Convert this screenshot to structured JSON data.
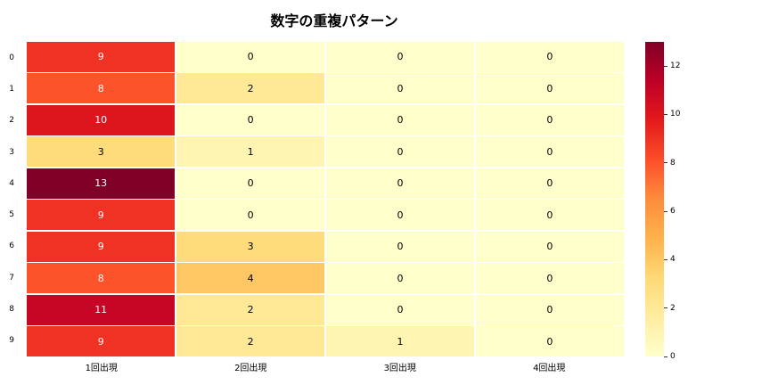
{
  "chart_data": {
    "type": "heatmap",
    "title": "数字の重複パターン",
    "rows": [
      "0",
      "1",
      "2",
      "3",
      "4",
      "5",
      "6",
      "7",
      "8",
      "9"
    ],
    "columns": [
      "1回出現",
      "2回出現",
      "3回出現",
      "4回出現"
    ],
    "values": [
      [
        9,
        0,
        0,
        0
      ],
      [
        8,
        2,
        0,
        0
      ],
      [
        10,
        0,
        0,
        0
      ],
      [
        3,
        1,
        0,
        0
      ],
      [
        13,
        0,
        0,
        0
      ],
      [
        9,
        0,
        0,
        0
      ],
      [
        9,
        3,
        0,
        0
      ],
      [
        8,
        4,
        0,
        0
      ],
      [
        11,
        2,
        0,
        0
      ],
      [
        9,
        2,
        1,
        0
      ]
    ],
    "vmin": 0,
    "vmax": 13,
    "colormap": "YlOrRd",
    "colorbar_ticks": [
      0,
      2,
      4,
      6,
      8,
      10,
      12
    ],
    "colorbar_gradient": [
      "#ffffcc",
      "#ffeda0",
      "#fed976",
      "#feb24c",
      "#fd8d3c",
      "#fc4e2a",
      "#e31a1c",
      "#bd0026",
      "#800026"
    ],
    "palette": {
      "0": "#ffffcc",
      "1": "#fff4b1",
      "2": "#ffe896",
      "3": "#fedc7c",
      "4": "#fec763",
      "8": "#fc532b",
      "9": "#ef3223",
      "10": "#dd161e",
      "11": "#c60624",
      "13": "#800026"
    },
    "text_white_threshold": 8,
    "annotation_color_dark": "#000000",
    "annotation_color_light": "#ffffff",
    "legend_position": "right",
    "grid": "white-lines"
  }
}
